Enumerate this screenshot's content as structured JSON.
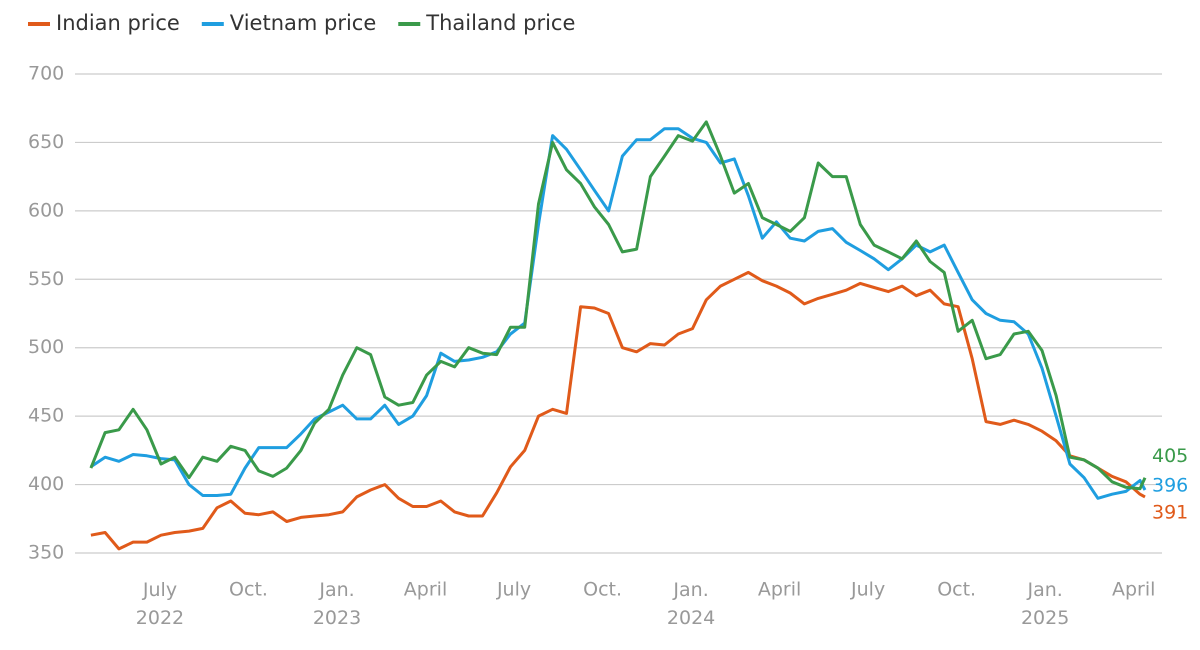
{
  "chart_data": {
    "type": "line",
    "x": [
      2022.305,
      2022.345,
      2022.384,
      2022.424,
      2022.463,
      2022.503,
      2022.542,
      2022.582,
      2022.621,
      2022.661,
      2022.7,
      2022.74,
      2022.779,
      2022.819,
      2022.858,
      2022.898,
      2022.937,
      2022.977,
      2023.016,
      2023.056,
      2023.095,
      2023.135,
      2023.174,
      2023.214,
      2023.253,
      2023.293,
      2023.332,
      2023.372,
      2023.411,
      2023.451,
      2023.49,
      2023.53,
      2023.569,
      2023.609,
      2023.648,
      2023.688,
      2023.727,
      2023.767,
      2023.806,
      2023.846,
      2023.885,
      2023.925,
      2023.964,
      2024.004,
      2024.043,
      2024.083,
      2024.122,
      2024.162,
      2024.201,
      2024.241,
      2024.28,
      2024.32,
      2024.359,
      2024.399,
      2024.438,
      2024.478,
      2024.517,
      2024.557,
      2024.596,
      2024.636,
      2024.675,
      2024.715,
      2024.754,
      2024.794,
      2024.833,
      2024.873,
      2024.912,
      2024.952,
      2024.991,
      2025.031,
      2025.07,
      2025.11,
      2025.149,
      2025.189,
      2025.228,
      2025.268,
      2025.282
    ],
    "series": [
      {
        "name": "Indian price",
        "color": "#e05a1a",
        "values": [
          363,
          365,
          353,
          358,
          358,
          363,
          365,
          366,
          368,
          383,
          388,
          379,
          378,
          380,
          373,
          376,
          377,
          378,
          380,
          391,
          396,
          400,
          390,
          384,
          384,
          388,
          380,
          377,
          377,
          394,
          413,
          425,
          450,
          455,
          452,
          530,
          529,
          525,
          500,
          497,
          503,
          502,
          510,
          514,
          535,
          545,
          550,
          555,
          549,
          545,
          540,
          532,
          536,
          539,
          542,
          547,
          544,
          541,
          545,
          538,
          542,
          532,
          530,
          492,
          446,
          444,
          447,
          444,
          439,
          432,
          421,
          418,
          412,
          406,
          402,
          393,
          391
        ]
      },
      {
        "name": "Vietnam price",
        "color": "#1f9ee0",
        "values": [
          413,
          420,
          417,
          422,
          421,
          419,
          418,
          400,
          392,
          392,
          393,
          412,
          427,
          427,
          427,
          437,
          448,
          453,
          458,
          448,
          448,
          458,
          444,
          450,
          465,
          496,
          490,
          491,
          493,
          497,
          510,
          518,
          590,
          655,
          645,
          630,
          615,
          600,
          640,
          652,
          652,
          660,
          660,
          653,
          650,
          635,
          638,
          611,
          580,
          592,
          580,
          578,
          585,
          587,
          577,
          571,
          565,
          557,
          565,
          575,
          570,
          575,
          555,
          535,
          525,
          520,
          519,
          510,
          485,
          450,
          415,
          405,
          390,
          393,
          395,
          403,
          396
        ]
      },
      {
        "name": "Thailand price",
        "color": "#3a9a4a",
        "values": [
          412,
          438,
          440,
          455,
          440,
          415,
          420,
          405,
          420,
          417,
          428,
          425,
          410,
          406,
          412,
          425,
          445,
          455,
          480,
          500,
          495,
          464,
          458,
          460,
          480,
          490,
          486,
          500,
          496,
          495,
          515,
          515,
          605,
          650,
          630,
          620,
          603,
          590,
          570,
          572,
          625,
          640,
          655,
          651,
          665,
          640,
          613,
          620,
          595,
          590,
          585,
          595,
          635,
          625,
          625,
          590,
          575,
          570,
          565,
          578,
          563,
          555,
          512,
          520,
          492,
          495,
          510,
          512,
          498,
          465,
          420,
          418,
          412,
          402,
          398,
          397,
          405
        ]
      }
    ],
    "xlim": [
      2022.26,
      2025.33
    ],
    "xticks": [
      {
        "value": 2022.5,
        "label": "July 2022"
      },
      {
        "value": 2022.75,
        "label": "Oct."
      },
      {
        "value": 2023.0,
        "label": "Jan. 2023"
      },
      {
        "value": 2023.25,
        "label": "April"
      },
      {
        "value": 2023.5,
        "label": "July"
      },
      {
        "value": 2023.75,
        "label": "Oct."
      },
      {
        "value": 2024.0,
        "label": "Jan. 2024"
      },
      {
        "value": 2024.25,
        "label": "April"
      },
      {
        "value": 2024.5,
        "label": "July"
      },
      {
        "value": 2024.75,
        "label": "Oct."
      },
      {
        "value": 2025.0,
        "label": "Jan. 2025"
      },
      {
        "value": 2025.25,
        "label": "April"
      }
    ],
    "ylim": [
      350,
      700
    ],
    "yticks": [
      350,
      400,
      450,
      500,
      550,
      600,
      650,
      700
    ],
    "grid": true
  }
}
